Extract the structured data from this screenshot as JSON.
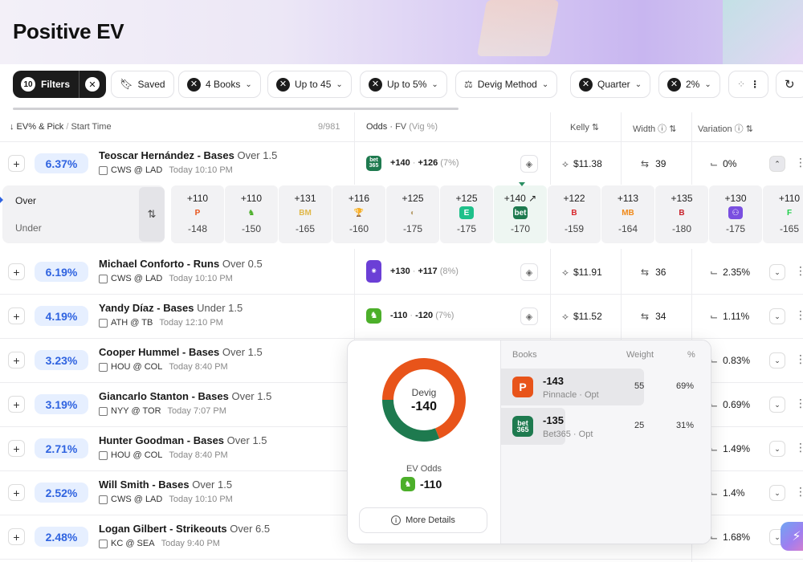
{
  "header": {
    "title": "Positive EV"
  },
  "filters": {
    "count": "10",
    "label": "Filters",
    "saved": "Saved",
    "books": "4 Books",
    "up_to_45": "Up to 45",
    "up_to_5": "Up to 5%",
    "devig": "Devig Method",
    "quarter": "Quarter",
    "two_pct": "2%"
  },
  "table": {
    "col_pick": "↓ EV% & Pick",
    "col_pick_sep": "/",
    "col_start": "Start Time",
    "count": "9/981",
    "col_odds": "Odds",
    "col_fv": "FV",
    "col_vig": "(Vig %)",
    "col_kelly": "Kelly",
    "col_width": "Width",
    "col_var": "Variation"
  },
  "rows": [
    {
      "ev": "6.37%",
      "player": "Teoscar Hernández - Bases",
      "ou": "Over 1.5",
      "game": "CWS @ LAD",
      "time": "Today 10:10 PM",
      "book": "bet365",
      "book_color": "#1e7a4f",
      "odds": "+140",
      "fv": "+126",
      "vig": "(7%)",
      "kelly": "$11.38",
      "width": "39",
      "variation": "0%"
    },
    {
      "ev": "6.19%",
      "player": "Michael Conforto - Runs",
      "ou": "Over 0.5",
      "game": "CWS @ LAD",
      "time": "Today 10:10 PM",
      "book": "multi",
      "book_color": "#6b3fd6",
      "odds": "+130",
      "fv": "+117",
      "vig": "(8%)",
      "kelly": "$11.91",
      "width": "36",
      "variation": "2.35%"
    },
    {
      "ev": "4.19%",
      "player": "Yandy Díaz - Bases",
      "ou": "Under 1.5",
      "game": "ATH @ TB",
      "time": "Today 12:10 PM",
      "book": "draftkings",
      "book_color": "#4caf2a",
      "odds": "-110",
      "fv": "-120",
      "vig": "(7%)",
      "kelly": "$11.52",
      "width": "34",
      "variation": "1.11%"
    },
    {
      "ev": "3.23%",
      "player": "Cooper Hummel - Bases",
      "ou": "Over 1.5",
      "game": "HOU @ COL",
      "time": "Today 8:40 PM",
      "variation": "0.83%"
    },
    {
      "ev": "3.19%",
      "player": "Giancarlo Stanton - Bases",
      "ou": "Over 1.5",
      "game": "NYY @ TOR",
      "time": "Today 7:07 PM",
      "variation": "0.69%"
    },
    {
      "ev": "2.71%",
      "player": "Hunter Goodman - Bases",
      "ou": "Over 1.5",
      "game": "HOU @ COL",
      "time": "Today 8:40 PM",
      "variation": "1.49%"
    },
    {
      "ev": "2.52%",
      "player": "Will Smith - Bases",
      "ou": "Over 1.5",
      "game": "CWS @ LAD",
      "time": "Today 10:10 PM",
      "variation": "1.4%"
    },
    {
      "ev": "2.48%",
      "player": "Logan Gilbert - Strikeouts",
      "ou": "Over 6.5",
      "game": "KC @ SEA",
      "time": "Today 9:40 PM",
      "variation": "1.68%"
    }
  ],
  "strip": {
    "over": "Over",
    "under": "Under",
    "books": [
      {
        "over": "+110",
        "under": "-148",
        "glyph": "P",
        "color": "#e8541a",
        "bg": "transparent"
      },
      {
        "over": "+110",
        "under": "-150",
        "glyph": "♞",
        "color": "#4caf2a",
        "bg": "transparent"
      },
      {
        "over": "+131",
        "under": "-165",
        "glyph": "BM",
        "color": "#e0b84a",
        "bg": "transparent"
      },
      {
        "over": "+116",
        "under": "-160",
        "glyph": "🏆",
        "color": "#b08a3a",
        "bg": "transparent"
      },
      {
        "over": "+125",
        "under": "-175",
        "glyph": "◐",
        "color": "#b8a070",
        "bg": "transparent"
      },
      {
        "over": "+125",
        "under": "-175",
        "glyph": "E",
        "color": "#fff",
        "bg": "#1fc08a"
      },
      {
        "over": "+140",
        "under": "-170",
        "glyph": "bet",
        "color": "#fff",
        "bg": "#1e7a4f",
        "arrow": "↗"
      },
      {
        "over": "+122",
        "under": "-159",
        "glyph": "B",
        "color": "#d8262b",
        "bg": "transparent"
      },
      {
        "over": "+113",
        "under": "-164",
        "glyph": "MB",
        "color": "#f08a1a",
        "bg": "transparent"
      },
      {
        "over": "+135",
        "under": "-180",
        "glyph": "B",
        "color": "#c8202a",
        "bg": "transparent"
      },
      {
        "over": "+130",
        "under": "-175",
        "glyph": "⚇",
        "color": "#fff",
        "bg": "#7a4fe0"
      },
      {
        "over": "+110",
        "under": "-165",
        "glyph": "F",
        "color": "#1fd04a",
        "bg": "transparent"
      }
    ]
  },
  "popover": {
    "devig_label": "Devig",
    "devig_value": "-140",
    "ev_odds_label": "EV Odds",
    "ev_odds_value": "-110",
    "more_details": "More Details",
    "col_books": "Books",
    "col_weight": "Weight",
    "col_pct": "%",
    "books": [
      {
        "odds": "-143",
        "name": "Pinnacle · Opt",
        "weight": "55",
        "pct": "69%",
        "weight_value": 0.69,
        "color": "#e8541a",
        "logo": "P"
      },
      {
        "odds": "-135",
        "name": "Bet365 · Opt",
        "weight": "25",
        "pct": "31%",
        "weight_value": 0.31,
        "color": "#1e7a4f",
        "logo": "bet 365"
      }
    ]
  }
}
